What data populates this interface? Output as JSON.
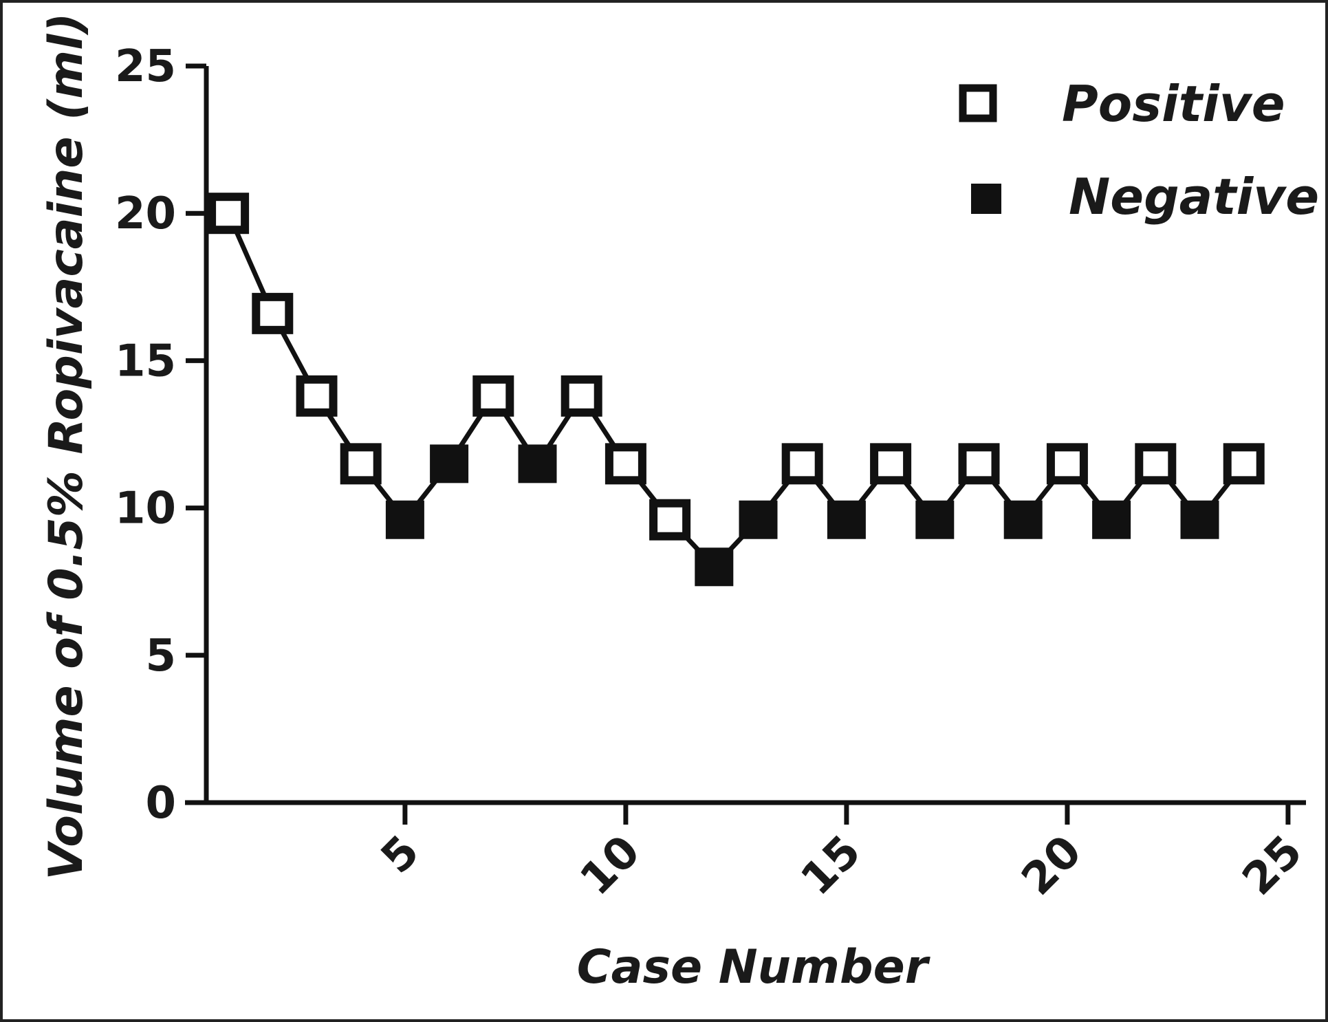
{
  "chart_data": {
    "type": "line",
    "title": "",
    "xlabel": "Case Number",
    "ylabel": "Volume of 0.5% Ropivacaine (ml)",
    "xlim": [
      0.5,
      25
    ],
    "ylim": [
      0,
      25
    ],
    "x_ticks": [
      "5",
      "10",
      "15",
      "20",
      "25"
    ],
    "y_ticks": [
      "0",
      "5",
      "10",
      "15",
      "20",
      "25"
    ],
    "grid": false,
    "legend_position": "top-right",
    "legend": [
      {
        "label": "Positive",
        "marker": "open-square"
      },
      {
        "label": "Negative",
        "marker": "filled-square"
      }
    ],
    "series": [
      {
        "x": [
          1,
          2,
          3,
          4,
          5,
          6,
          7,
          8,
          9,
          10,
          11,
          12,
          13,
          14,
          15,
          16,
          17,
          18,
          19,
          20,
          21,
          22,
          23,
          24
        ],
        "y": [
          20,
          16.6,
          13.8,
          11.5,
          9.6,
          11.5,
          13.8,
          11.5,
          13.8,
          11.5,
          9.6,
          8,
          9.6,
          11.5,
          9.6,
          11.5,
          9.6,
          11.5,
          9.6,
          11.5,
          9.6,
          11.5,
          9.6,
          11.5
        ],
        "outcome": [
          "Positive",
          "Positive",
          "Positive",
          "Positive",
          "Negative",
          "Negative",
          "Positive",
          "Negative",
          "Positive",
          "Positive",
          "Positive",
          "Negative",
          "Negative",
          "Positive",
          "Negative",
          "Positive",
          "Negative",
          "Positive",
          "Negative",
          "Positive",
          "Negative",
          "Positive",
          "Negative",
          "Positive"
        ]
      }
    ],
    "colors": {
      "line": "#111111",
      "marker_fill": "#111111",
      "marker_open_fill": "#ffffff"
    }
  }
}
